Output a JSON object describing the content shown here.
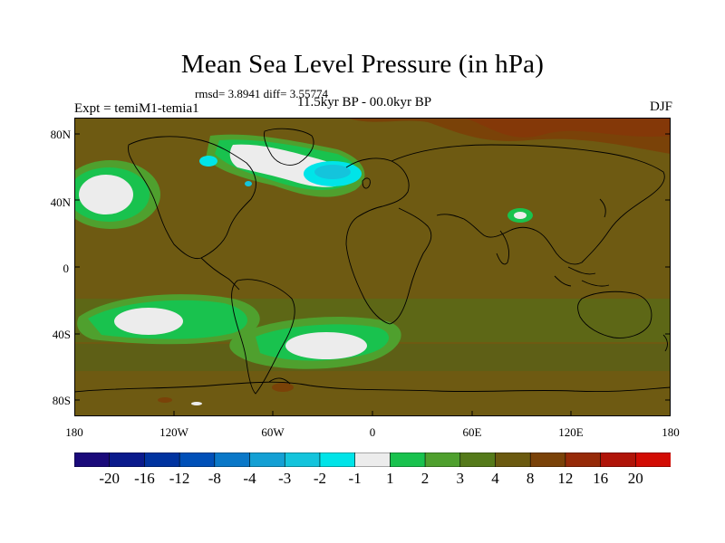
{
  "title": "Mean Sea Level Pressure (in hPa)",
  "stats": "rmsd= 3.8941 diff= 3.55774",
  "experiment": "Expt = temiM1-temia1",
  "period": "11.5kyr BP - 00.0kyr BP",
  "season": "DJF",
  "lat_ticks": [
    "80N",
    "40N",
    "0",
    "40S",
    "80S"
  ],
  "lon_ticks": [
    "180",
    "120W",
    "60W",
    "0",
    "60E",
    "120E",
    "180"
  ],
  "colorbar": {
    "labels": [
      "-20",
      "-16",
      "-12",
      "-8",
      "-4",
      "-3",
      "-2",
      "-1",
      "1",
      "2",
      "3",
      "4",
      "8",
      "12",
      "16",
      "20"
    ],
    "colors": [
      "#1a0a7a",
      "#0a1a8c",
      "#0033a0",
      "#0050b8",
      "#0a78c8",
      "#14a0d4",
      "#14c4dc",
      "#00e4e8",
      "#ececec",
      "#19c24e",
      "#4fa02e",
      "#557a1a",
      "#6b5a10",
      "#7a4208",
      "#962a08",
      "#b01408",
      "#d20c04"
    ]
  },
  "colors": {
    "background_field": "#6e5a12",
    "coastline": "#000000"
  }
}
